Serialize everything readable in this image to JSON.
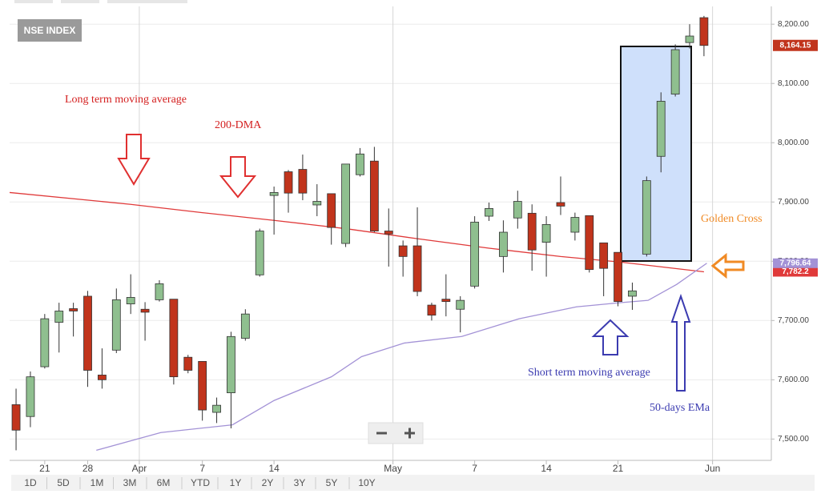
{
  "chart_data": {
    "type": "candlestick",
    "badge": "NSE INDEX",
    "x": [
      0,
      1,
      2,
      3,
      4,
      5,
      6,
      7,
      8,
      9,
      10,
      11,
      12,
      13,
      14,
      15,
      16,
      17,
      18,
      19,
      20,
      21,
      22,
      23,
      24,
      25,
      26,
      27,
      28,
      29,
      30,
      31,
      32,
      33,
      34,
      35,
      36,
      37,
      38,
      39,
      40,
      41,
      42,
      43,
      44,
      45,
      46,
      47,
      48
    ],
    "open": [
      7558,
      7538,
      7622,
      7697,
      7720,
      7741,
      7608,
      7650,
      7728,
      7719,
      7735,
      7736,
      7638,
      7631,
      7545,
      7578,
      7670,
      7777,
      7911,
      7951,
      7955,
      7895,
      7914,
      7830,
      7946,
      7969,
      7851,
      7826,
      7826,
      7726,
      7736,
      7719,
      7758,
      7876,
      7808,
      7873,
      7881,
      7832,
      7899,
      7849,
      7877,
      7831,
      7815,
      7741,
      7812,
      7977,
      8082,
      8169,
      8211
    ],
    "high": [
      7585,
      7614,
      7711,
      7730,
      7730,
      7750,
      7653,
      7754,
      7778,
      7731,
      7768,
      7736,
      7642,
      7631,
      7570,
      7681,
      7719,
      7855,
      7926,
      7954,
      7980,
      7930,
      7914,
      7964,
      7991,
      7993,
      7889,
      7835,
      7891,
      7730,
      7778,
      7741,
      7876,
      7899,
      7869,
      7919,
      7896,
      7876,
      7943,
      7882,
      7877,
      7831,
      7815,
      7764,
      7943,
      8085,
      8166,
      8200,
      8214
    ],
    "low": [
      7481,
      7520,
      7619,
      7646,
      7673,
      7588,
      7585,
      7645,
      7711,
      7666,
      7732,
      7592,
      7611,
      7531,
      7527,
      7518,
      7666,
      7774,
      7845,
      7882,
      7903,
      7876,
      7828,
      7824,
      7943,
      7849,
      7791,
      7774,
      7741,
      7700,
      7707,
      7680,
      7754,
      7868,
      7781,
      7855,
      7784,
      7774,
      7878,
      7835,
      7781,
      7741,
      7724,
      7718,
      7808,
      7950,
      8078,
      8159,
      8146
    ],
    "close": [
      7515,
      7605,
      7703,
      7716,
      7716,
      7616,
      7600,
      7735,
      7739,
      7714,
      7762,
      7605,
      7616,
      7549,
      7557,
      7673,
      7711,
      7851,
      7916,
      7915,
      7915,
      7901,
      7857,
      7964,
      7981,
      7851,
      7846,
      7808,
      7749,
      7709,
      7732,
      7734,
      7866,
      7889,
      7849,
      7901,
      7819,
      7862,
      7893,
      7874,
      7786,
      7788,
      7732,
      7750,
      7936,
      8070,
      8157,
      8180,
      8164.15
    ],
    "close_value_labels": [
      null,
      null,
      null,
      null,
      null,
      null,
      null,
      null,
      null,
      null,
      null,
      null,
      null,
      null,
      null,
      null,
      null,
      null,
      null,
      null,
      null,
      null,
      null,
      null,
      null,
      null,
      null,
      null,
      null,
      null,
      null,
      null,
      null,
      null,
      null,
      null,
      null,
      null,
      null,
      null,
      null,
      null,
      null,
      null,
      null,
      null,
      null,
      null,
      "8,164.15"
    ],
    "up_color": "#8fbf8f",
    "down_color": "#c1341c",
    "lines": [
      {
        "color": "#e03a3a",
        "x": [
          -0.45,
          8,
          13,
          18,
          23,
          28,
          33,
          38,
          42,
          48
        ],
        "values": [
          7916,
          7896,
          7882,
          7869,
          7855,
          7838,
          7822,
          7808,
          7799,
          7782.2
        ],
        "value_labels": [
          null,
          null,
          null,
          null,
          null,
          null,
          null,
          null,
          null,
          "7,782.2"
        ]
      },
      {
        "color": "#a392d6",
        "x": [
          5.6,
          10.1,
          15.1,
          18,
          22,
          24.1,
          27.1,
          31.1,
          35.1,
          39.1,
          42.1,
          44.1,
          46.1,
          48.2
        ],
        "values": [
          7481,
          7511,
          7524,
          7565,
          7605,
          7639,
          7662,
          7673,
          7703,
          7723,
          7730,
          7734,
          7761,
          7796.64
        ],
        "value_labels": [
          null,
          null,
          null,
          null,
          null,
          null,
          null,
          null,
          null,
          null,
          null,
          null,
          null,
          "7,796.64"
        ]
      }
    ],
    "xlim": [
      -0.45,
      52.7
    ],
    "xticks": [
      {
        "value": 2,
        "label": "21"
      },
      {
        "value": 5,
        "label": "28"
      },
      {
        "value": 8.6,
        "label": "Apr",
        "major": true
      },
      {
        "value": 13,
        "label": "7"
      },
      {
        "value": 18,
        "label": "14"
      },
      {
        "value": 26.3,
        "label": "May",
        "major": true
      },
      {
        "value": 32,
        "label": "7"
      },
      {
        "value": 37,
        "label": "14"
      },
      {
        "value": 42,
        "label": "21"
      },
      {
        "value": 48.6,
        "label": "Jun",
        "major": true
      }
    ],
    "ylim": [
      7464,
      8230
    ],
    "yticks": [
      {
        "value": 7500,
        "label": "7,500.00"
      },
      {
        "value": 7600,
        "label": "7,600.00"
      },
      {
        "value": 7700,
        "label": "7,700.00"
      },
      {
        "value": 7800,
        "label": "7,800.00"
      },
      {
        "value": 7900,
        "label": "7,900.00"
      },
      {
        "value": 8000,
        "label": "8,000.00"
      },
      {
        "value": 8100,
        "label": "8,100.00"
      },
      {
        "value": 8200,
        "label": "8,200.00"
      }
    ],
    "grid": true,
    "annotations": [
      {
        "text": "Long term moving average",
        "color": "#d42020"
      },
      {
        "text": "200-DMA",
        "color": "#d42020"
      },
      {
        "text": "Short term moving average",
        "color": "#3b3bb0"
      },
      {
        "text": "50-days EMa",
        "color": "#3b3bb0"
      },
      {
        "text": "Golden Cross",
        "color": "#f08a24"
      }
    ],
    "ranges": [
      "1D",
      "5D",
      "1M",
      "3M",
      "6M",
      "YTD",
      "1Y",
      "2Y",
      "3Y",
      "5Y",
      "10Y"
    ]
  }
}
